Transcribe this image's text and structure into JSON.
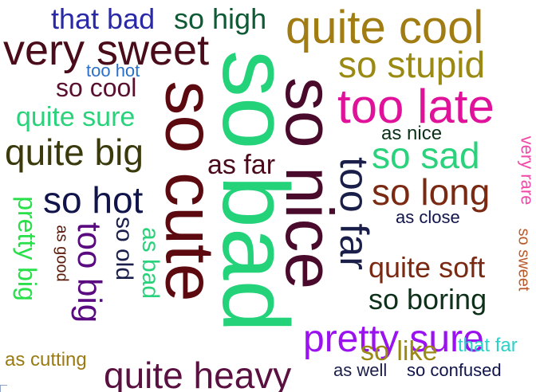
{
  "words": [
    {
      "text": "so bad",
      "color": "#24d27a"
    },
    {
      "text": "so nice",
      "color": "#4a0a2c"
    },
    {
      "text": "so cute",
      "color": "#5c0a0f"
    },
    {
      "text": "quite cool",
      "color": "#a07c12"
    },
    {
      "text": "too late",
      "color": "#e0129a"
    },
    {
      "text": "very sweet",
      "color": "#4a0c1a"
    },
    {
      "text": "so stupid",
      "color": "#9a8a14"
    },
    {
      "text": "too far",
      "color": "#1a1f4a"
    },
    {
      "text": "quite big",
      "color": "#3a3a0c"
    },
    {
      "text": "so hot",
      "color": "#10144a"
    },
    {
      "text": "so sad",
      "color": "#2ad27c"
    },
    {
      "text": "so long",
      "color": "#7a2a12"
    },
    {
      "text": "quite heavy",
      "color": "#5a1040"
    },
    {
      "text": "pretty sure",
      "color": "#9a12f0"
    },
    {
      "text": "that bad",
      "color": "#2a2aa8"
    },
    {
      "text": "so high",
      "color": "#0e5a34"
    },
    {
      "text": "quite sure",
      "color": "#2ad27c"
    },
    {
      "text": "too big",
      "color": "#5a0a80"
    },
    {
      "text": "so cool",
      "color": "#5a1030"
    },
    {
      "text": "as far",
      "color": "#4a0a1c"
    },
    {
      "text": "quite soft",
      "color": "#7a2a12"
    },
    {
      "text": "so boring",
      "color": "#0c3018"
    },
    {
      "text": "so like",
      "color": "#9a8a14"
    },
    {
      "text": "pretty big",
      "color": "#2ae04a"
    },
    {
      "text": "as bad",
      "color": "#2ad27c"
    },
    {
      "text": "so old",
      "color": "#1a1f4a"
    },
    {
      "text": "very rare",
      "color": "#f04aa8"
    },
    {
      "text": "so sweet",
      "color": "#b85a2a"
    },
    {
      "text": "as nice",
      "color": "#0c3018"
    },
    {
      "text": "as close",
      "color": "#10144a"
    },
    {
      "text": "too hot",
      "color": "#2a70c8"
    },
    {
      "text": "as good",
      "color": "#5a1a0a"
    },
    {
      "text": "as cutting",
      "color": "#9a7a12"
    },
    {
      "text": "that far",
      "color": "#2ad2c8"
    },
    {
      "text": "as well",
      "color": "#1a1f4a"
    },
    {
      "text": "so confused",
      "color": "#10144a"
    }
  ]
}
